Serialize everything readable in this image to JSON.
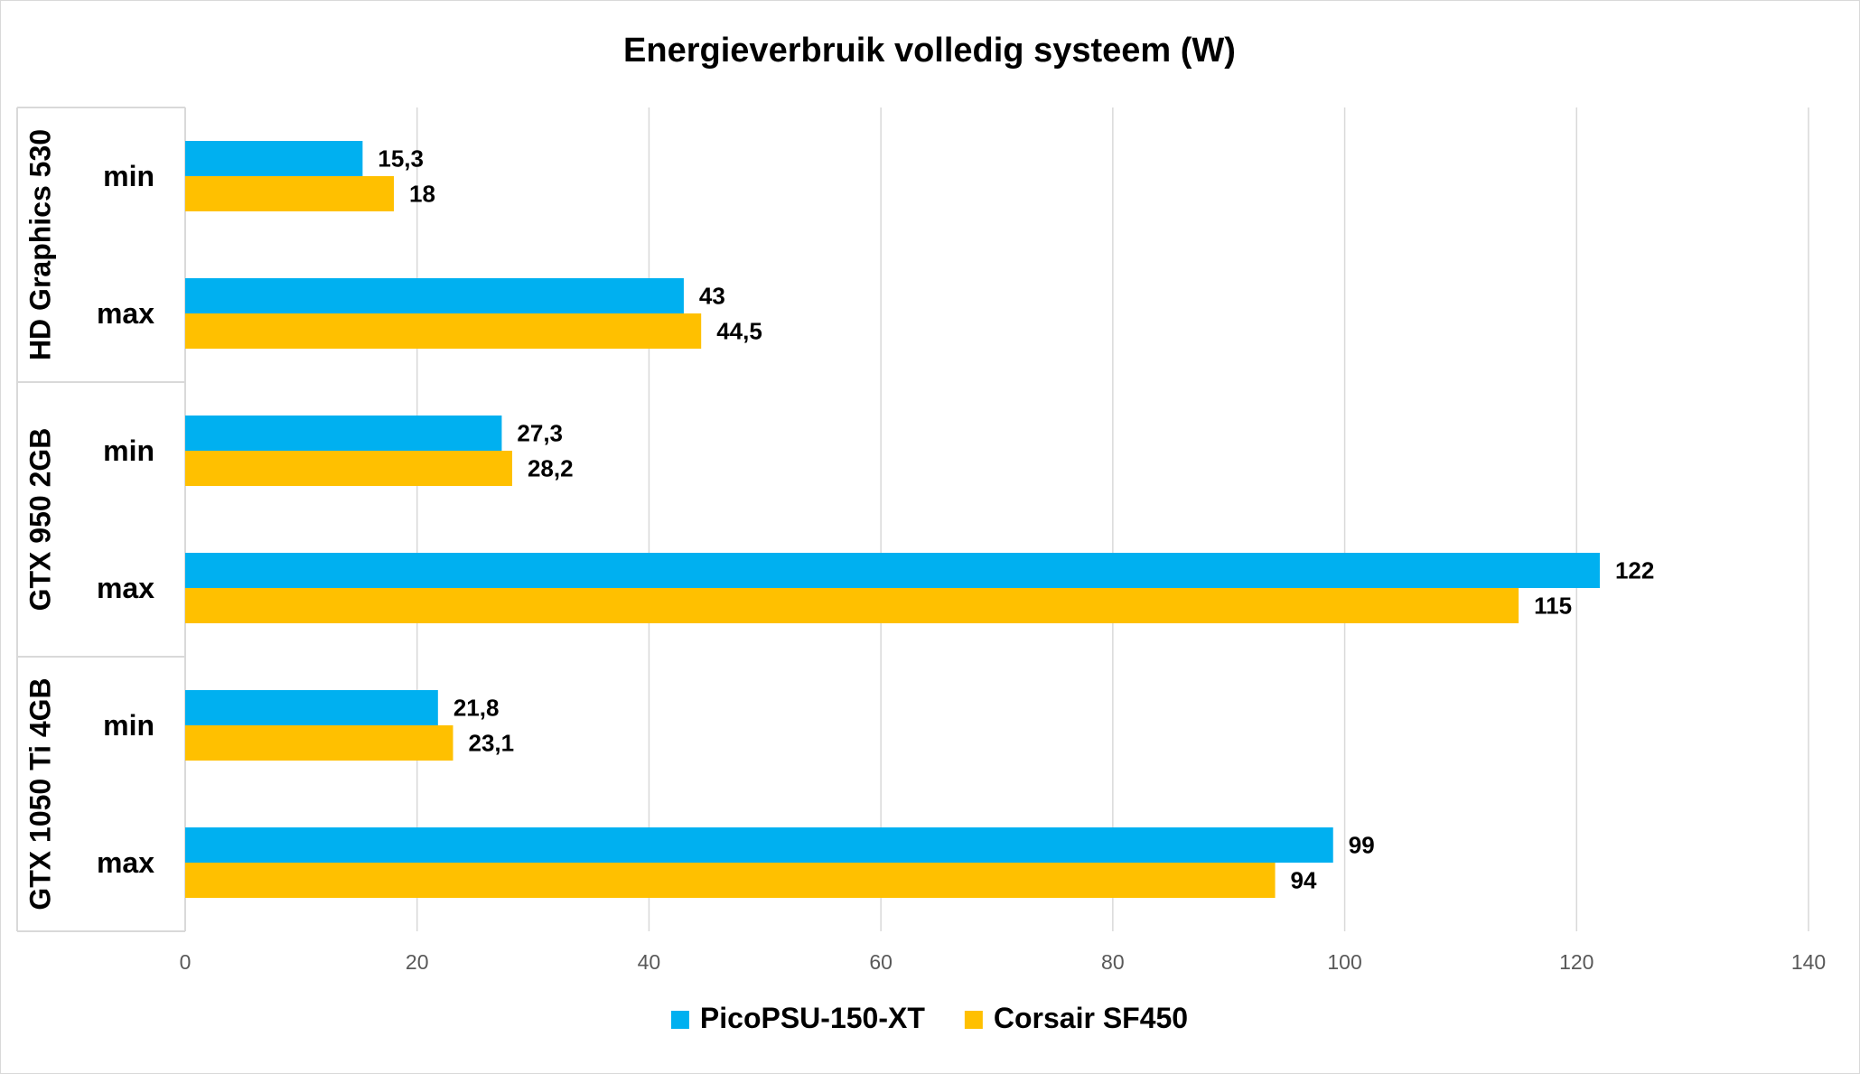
{
  "chart_data": {
    "type": "bar",
    "orientation": "horizontal",
    "title": "Energieverbruik volledig systeem (W)",
    "xlabel": "",
    "ylabel": "",
    "xlim": [
      0,
      140
    ],
    "x_ticks": [
      0,
      20,
      40,
      60,
      80,
      100,
      120,
      140
    ],
    "grid": true,
    "legend_position": "bottom",
    "groups": [
      {
        "name": "HD Graphics 530",
        "categories": [
          "min",
          "max"
        ]
      },
      {
        "name": "GTX 950 2GB",
        "categories": [
          "min",
          "max"
        ]
      },
      {
        "name": "GTX 1050 Ti 4GB",
        "categories": [
          "min",
          "max"
        ]
      }
    ],
    "series": [
      {
        "name": "PicoPSU-150-XT",
        "color": "#00b0f0",
        "values": [
          15.3,
          43,
          27.3,
          122,
          21.8,
          99
        ],
        "labels": [
          "15,3",
          "43",
          "27,3",
          "122",
          "21,8",
          "99"
        ]
      },
      {
        "name": "Corsair SF450",
        "color": "#ffc000",
        "values": [
          18,
          44.5,
          28.2,
          115,
          23.1,
          94
        ],
        "labels": [
          "18",
          "44,5",
          "28,2",
          "115",
          "23,1",
          "94"
        ]
      }
    ]
  },
  "colors": {
    "gridline": "#d9d9d9",
    "axis": "#d9d9d9",
    "tick_text": "#595959"
  }
}
